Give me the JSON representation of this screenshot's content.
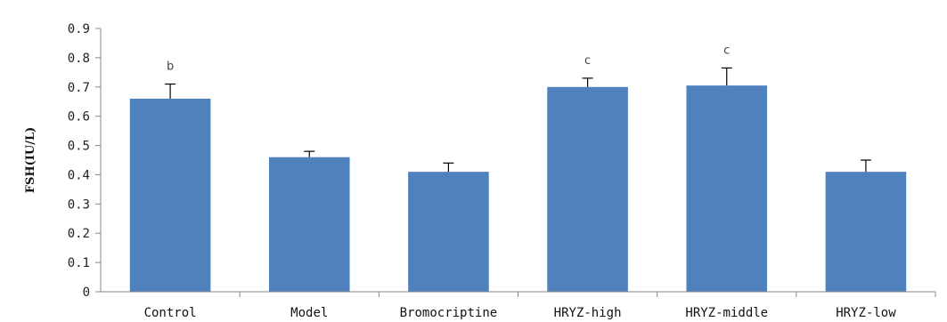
{
  "chart_data": {
    "type": "bar",
    "title": "",
    "xlabel": "",
    "ylabel": "FSH(IU/L)",
    "ylim": [
      0,
      0.9
    ],
    "yticks": [
      0,
      0.1,
      0.2,
      0.3,
      0.4,
      0.5,
      0.6,
      0.7,
      0.8,
      0.9
    ],
    "ytick_labels": [
      "0",
      "0.1",
      "0.2",
      "0.3",
      "0.4",
      "0.5",
      "0.6",
      "0.7",
      "0.8",
      "0.9"
    ],
    "grid": false,
    "legend": "none",
    "categories": [
      "Control",
      "Model",
      "Bromocriptine",
      "HRYZ-high",
      "HRYZ-middle",
      "HRYZ-low"
    ],
    "values": [
      0.66,
      0.46,
      0.41,
      0.7,
      0.705,
      0.41
    ],
    "error_plus": [
      0.05,
      0.02,
      0.03,
      0.03,
      0.06,
      0.04
    ],
    "significance": [
      "b",
      "",
      "",
      "c",
      "c",
      ""
    ],
    "bar_color": "#4f81bd",
    "axis_color": "#888888"
  }
}
